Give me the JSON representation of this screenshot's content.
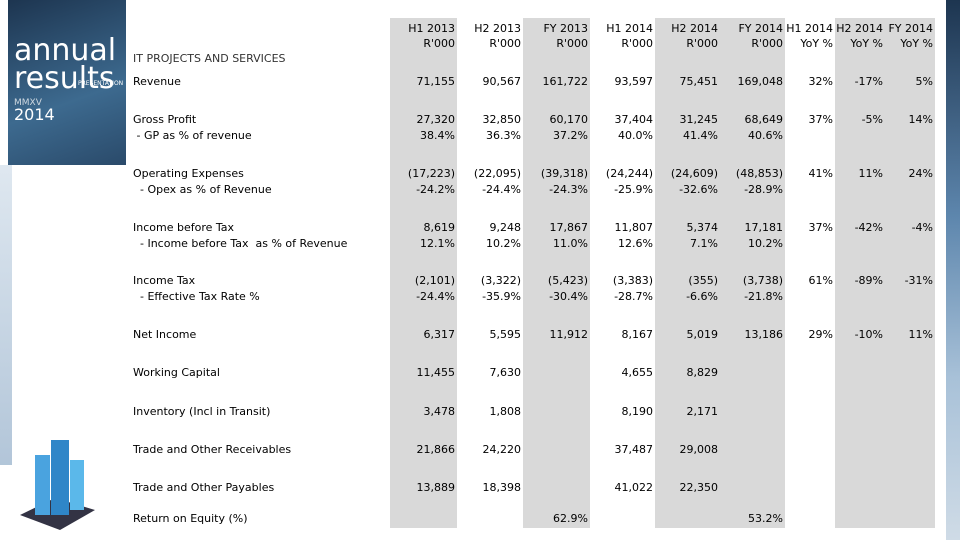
{
  "logo": {
    "line1": "annual",
    "line2": "results",
    "tag": "PRESENTATION",
    "roman": "MMXV",
    "year": "2014"
  },
  "section": "IT PROJECTS AND SERVICES",
  "table": {
    "headers": [
      [
        "H1 2013",
        "R'000"
      ],
      [
        "H2 2013",
        "R'000"
      ],
      [
        "FY 2013",
        "R'000"
      ],
      [
        "H1 2014",
        "R'000"
      ],
      [
        "H2 2014",
        "R'000"
      ],
      [
        "FY 2014",
        "R'000"
      ],
      [
        "H1 2014",
        "YoY %"
      ],
      [
        "H2 2014",
        "YoY %"
      ],
      [
        "FY 2014",
        "YoY %"
      ]
    ],
    "rows": [
      {
        "label": "Revenue",
        "values": [
          "71,155",
          "90,567",
          "161,722",
          "93,597",
          "75,451",
          "169,048",
          "32%",
          "-17%",
          "5%"
        ]
      },
      {
        "label": "Gross Profit",
        "values": [
          "27,320",
          "32,850",
          "60,170",
          "37,404",
          "31,245",
          "68,649",
          "37%",
          "-5%",
          "14%"
        ],
        "sub": {
          "label": " - GP as % of revenue",
          "values": [
            "38.4%",
            "36.3%",
            "37.2%",
            "40.0%",
            "41.4%",
            "40.6%",
            null,
            null,
            null
          ]
        }
      },
      {
        "label": "Operating Expenses",
        "values": [
          "(17,223)",
          "(22,095)",
          "(39,318)",
          "(24,244)",
          "(24,609)",
          "(48,853)",
          "41%",
          "11%",
          "24%"
        ],
        "sub": {
          "label": "  - Opex as % of Revenue",
          "values": [
            "-24.2%",
            "-24.4%",
            "-24.3%",
            "-25.9%",
            "-32.6%",
            "-28.9%",
            null,
            null,
            null
          ]
        }
      },
      {
        "label": "Income before Tax",
        "values": [
          "8,619",
          "9,248",
          "17,867",
          "11,807",
          "5,374",
          "17,181",
          "37%",
          "-42%",
          "-4%"
        ],
        "sub": {
          "label": "  - Income before Tax  as % of Revenue",
          "values": [
            "12.1%",
            "10.2%",
            "11.0%",
            "12.6%",
            "7.1%",
            "10.2%",
            null,
            null,
            null
          ]
        }
      },
      {
        "label": "Income Tax",
        "values": [
          "(2,101)",
          "(3,322)",
          "(5,423)",
          "(3,383)",
          "(355)",
          "(3,738)",
          "61%",
          "-89%",
          "-31%"
        ],
        "sub": {
          "label": "  - Effective Tax Rate %",
          "values": [
            "-24.4%",
            "-35.9%",
            "-30.4%",
            "-28.7%",
            "-6.6%",
            "-21.8%",
            null,
            null,
            null
          ]
        }
      },
      {
        "label": "Net Income",
        "values": [
          "6,317",
          "5,595",
          "11,912",
          "8,167",
          "5,019",
          "13,186",
          "29%",
          "-10%",
          "11%"
        ]
      },
      {
        "label": "Working Capital",
        "values": [
          "11,455",
          "7,630",
          null,
          "4,655",
          "8,829",
          null,
          null,
          null,
          null
        ]
      },
      {
        "label": "Inventory (Incl in Transit)",
        "values": [
          "3,478",
          "1,808",
          null,
          "8,190",
          "2,171",
          null,
          null,
          null,
          null
        ]
      },
      {
        "label": "Trade and Other Receivables",
        "values": [
          "21,866",
          "24,220",
          null,
          "37,487",
          "29,008",
          null,
          null,
          null,
          null
        ]
      },
      {
        "label": "Trade and Other Payables",
        "values": [
          "13,889",
          "18,398",
          null,
          "41,022",
          "22,350",
          null,
          null,
          null,
          null
        ]
      },
      {
        "label": "Return on Equity (%)",
        "values": [
          null,
          null,
          "62.9%",
          null,
          null,
          "53.2%",
          null,
          null,
          null
        ]
      }
    ]
  }
}
